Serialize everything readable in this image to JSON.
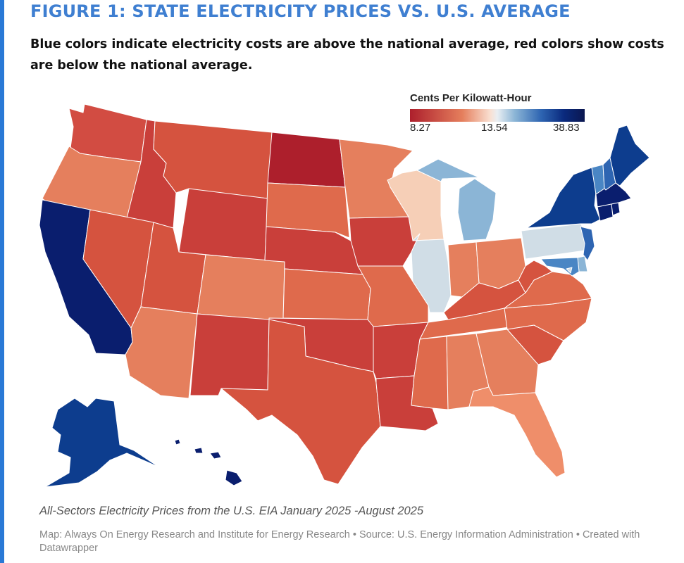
{
  "figure": {
    "title": "FIGURE 1: STATE ELECTRICITY PRICES VS. U.S. AVERAGE",
    "subtitle": "Blue colors indicate electricity costs are above the national average, red colors show costs are below the national average."
  },
  "legend": {
    "title": "Cents Per Kilowatt-Hour",
    "min_label": "8.27",
    "mid_label": "13.54",
    "max_label": "38.83",
    "min": 8.27,
    "mid": 13.54,
    "max": 38.83
  },
  "colors": {
    "accent": "#2979d6",
    "title": "#3f7fd1",
    "very_low": "#ad1f2c",
    "low": "#c93f3a",
    "below": "#d5533f",
    "moderately_below": "#df6a4c",
    "slightly_below": "#e57f5d",
    "near_below": "#ef8e6a",
    "near_average_low": "#f6cfb7",
    "average": "#d0dde6",
    "slightly_above": "#8bb5d6",
    "above": "#4a86c4",
    "high": "#2e65b2",
    "very_high": "#0d3d8e",
    "highest": "#0a1e6e"
  },
  "map": {
    "states": [
      {
        "id": "WA",
        "name": "Washington",
        "color": "very_low_mid"
      },
      {
        "id": "OR",
        "name": "Oregon",
        "color": "slightly_below"
      },
      {
        "id": "CA",
        "name": "California",
        "color": "highest"
      },
      {
        "id": "ID",
        "name": "Idaho",
        "color": "low"
      },
      {
        "id": "NV",
        "name": "Nevada",
        "color": "below"
      },
      {
        "id": "MT",
        "name": "Montana",
        "color": "below"
      },
      {
        "id": "WY",
        "name": "Wyoming",
        "color": "low"
      },
      {
        "id": "UT",
        "name": "Utah",
        "color": "below"
      },
      {
        "id": "AZ",
        "name": "Arizona",
        "color": "slightly_below"
      },
      {
        "id": "CO",
        "name": "Colorado",
        "color": "slightly_below"
      },
      {
        "id": "NM",
        "name": "New Mexico",
        "color": "low"
      },
      {
        "id": "ND",
        "name": "North Dakota",
        "color": "very_low"
      },
      {
        "id": "SD",
        "name": "South Dakota",
        "color": "moderately_below"
      },
      {
        "id": "NE",
        "name": "Nebraska",
        "color": "low"
      },
      {
        "id": "KS",
        "name": "Kansas",
        "color": "moderately_below"
      },
      {
        "id": "OK",
        "name": "Oklahoma",
        "color": "low"
      },
      {
        "id": "TX",
        "name": "Texas",
        "color": "below"
      },
      {
        "id": "MN",
        "name": "Minnesota",
        "color": "slightly_below"
      },
      {
        "id": "IA",
        "name": "Iowa",
        "color": "low"
      },
      {
        "id": "MO",
        "name": "Missouri",
        "color": "moderately_below"
      },
      {
        "id": "AR",
        "name": "Arkansas",
        "color": "low"
      },
      {
        "id": "LA",
        "name": "Louisiana",
        "color": "low"
      },
      {
        "id": "WI",
        "name": "Wisconsin",
        "color": "near_average_low"
      },
      {
        "id": "IL",
        "name": "Illinois",
        "color": "average"
      },
      {
        "id": "MI",
        "name": "Michigan",
        "color": "slightly_above"
      },
      {
        "id": "IN",
        "name": "Indiana",
        "color": "slightly_below"
      },
      {
        "id": "OH",
        "name": "Ohio",
        "color": "slightly_below"
      },
      {
        "id": "KY",
        "name": "Kentucky",
        "color": "below"
      },
      {
        "id": "TN",
        "name": "Tennessee",
        "color": "moderately_below"
      },
      {
        "id": "MS",
        "name": "Mississippi",
        "color": "moderately_below"
      },
      {
        "id": "AL",
        "name": "Alabama",
        "color": "slightly_below"
      },
      {
        "id": "GA",
        "name": "Georgia",
        "color": "slightly_below"
      },
      {
        "id": "FL",
        "name": "Florida",
        "color": "near_below"
      },
      {
        "id": "SC",
        "name": "South Carolina",
        "color": "below"
      },
      {
        "id": "NC",
        "name": "North Carolina",
        "color": "moderately_below"
      },
      {
        "id": "VA",
        "name": "Virginia",
        "color": "moderately_below"
      },
      {
        "id": "WV",
        "name": "West Virginia",
        "color": "below"
      },
      {
        "id": "PA",
        "name": "Pennsylvania",
        "color": "average"
      },
      {
        "id": "NY",
        "name": "New York",
        "color": "very_high"
      },
      {
        "id": "NJ",
        "name": "New Jersey",
        "color": "high"
      },
      {
        "id": "DE",
        "name": "Delaware",
        "color": "slightly_above"
      },
      {
        "id": "MD",
        "name": "Maryland",
        "color": "above"
      },
      {
        "id": "DC",
        "name": "District of Columbia",
        "color": "average"
      },
      {
        "id": "VT",
        "name": "Vermont",
        "color": "above"
      },
      {
        "id": "NH",
        "name": "New Hampshire",
        "color": "high"
      },
      {
        "id": "ME",
        "name": "Maine",
        "color": "very_high"
      },
      {
        "id": "MA",
        "name": "Massachusetts",
        "color": "highest"
      },
      {
        "id": "CT",
        "name": "Connecticut",
        "color": "highest"
      },
      {
        "id": "RI",
        "name": "Rhode Island",
        "color": "highest"
      },
      {
        "id": "AK",
        "name": "Alaska",
        "color": "very_high"
      },
      {
        "id": "HI",
        "name": "Hawaii",
        "color": "highest"
      }
    ]
  },
  "footer": {
    "note": "All-Sectors Electricity Prices from the U.S. EIA January 2025 -August 2025",
    "credits": "Map: Always On Energy Research and Institute for Energy Research • Source: U.S. Energy Information Administration • Created with Datawrapper"
  }
}
